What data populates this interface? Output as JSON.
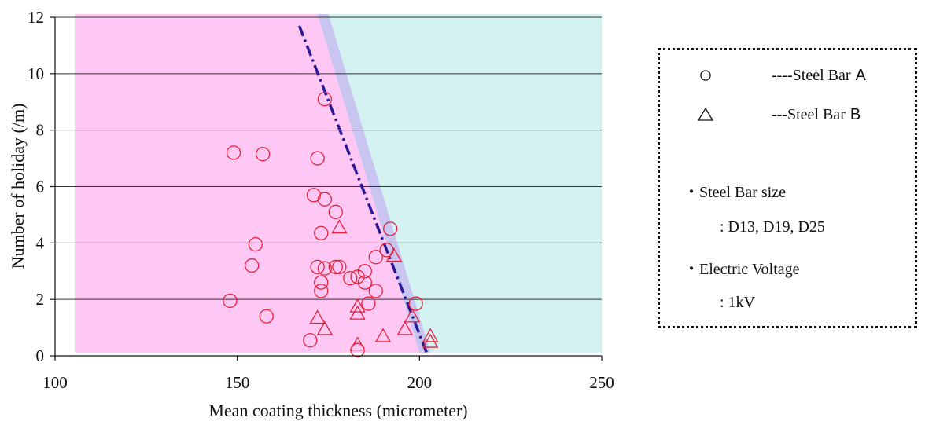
{
  "chart_data": {
    "type": "scatter",
    "title": "",
    "xlabel": "Mean coating thickness (micrometer)",
    "ylabel": "Number of holiday (/m)",
    "xlim": [
      100,
      250
    ],
    "ylim": [
      0,
      12
    ],
    "xticks": [
      "100",
      "150",
      "200",
      "250"
    ],
    "yticks": [
      "0",
      "2",
      "4",
      "6",
      "8",
      "10",
      "12"
    ],
    "grid": "horizontal",
    "regions": [
      {
        "color": "#ffc8f4",
        "desc": "left zone",
        "top_x": 172,
        "bottom_x": 200
      },
      {
        "color": "#d4f2f2",
        "desc": "right zone"
      },
      {
        "color": "#c8c6f0",
        "desc": "transition band",
        "top_x": [
          172,
          175
        ],
        "bottom_x": [
          200,
          203
        ]
      }
    ],
    "trend_line": {
      "style": "dash-dot",
      "color": "#2a1a9a",
      "points": [
        [
          167,
          11.7
        ],
        [
          202,
          0.1
        ]
      ]
    },
    "series": [
      {
        "name": "----Steel Bar A",
        "marker": "circle",
        "color": "#e8203a",
        "points": [
          [
            149,
            7.2
          ],
          [
            157,
            7.15
          ],
          [
            172,
            7.0
          ],
          [
            174,
            9.1
          ],
          [
            171,
            5.7
          ],
          [
            174,
            5.55
          ],
          [
            177,
            5.1
          ],
          [
            173,
            4.35
          ],
          [
            155,
            3.95
          ],
          [
            192,
            4.5
          ],
          [
            191,
            3.75
          ],
          [
            188,
            3.5
          ],
          [
            154,
            3.2
          ],
          [
            172,
            3.15
          ],
          [
            174,
            3.1
          ],
          [
            177,
            3.15
          ],
          [
            178,
            3.15
          ],
          [
            185,
            3.0
          ],
          [
            183,
            2.8
          ],
          [
            181,
            2.75
          ],
          [
            185,
            2.6
          ],
          [
            173,
            2.6
          ],
          [
            188,
            2.3
          ],
          [
            173,
            2.3
          ],
          [
            148,
            1.95
          ],
          [
            186,
            1.85
          ],
          [
            199,
            1.85
          ],
          [
            158,
            1.4
          ],
          [
            170,
            0.55
          ],
          [
            183,
            0.2
          ]
        ]
      },
      {
        "name": "---Steel Bar B",
        "marker": "triangle",
        "color": "#e8203a",
        "points": [
          [
            178,
            4.55
          ],
          [
            193,
            3.55
          ],
          [
            183,
            1.75
          ],
          [
            183,
            1.5
          ],
          [
            172,
            1.35
          ],
          [
            198,
            1.4
          ],
          [
            174,
            0.95
          ],
          [
            196,
            0.95
          ],
          [
            190,
            0.7
          ],
          [
            183,
            0.4
          ],
          [
            203,
            0.7
          ],
          [
            203,
            0.5
          ]
        ]
      }
    ]
  },
  "legend": {
    "items": [
      {
        "symbol": "circle",
        "text": "----Steel Bar",
        "letter": "A"
      },
      {
        "symbol": "triangle",
        "text": "---Steel Bar",
        "letter": "B"
      }
    ],
    "notes": [
      {
        "label": "・Steel Bar size",
        "value": ": D13, D19, D25"
      },
      {
        "label": "・Electric Voltage",
        "value": ": 1kV"
      }
    ]
  }
}
